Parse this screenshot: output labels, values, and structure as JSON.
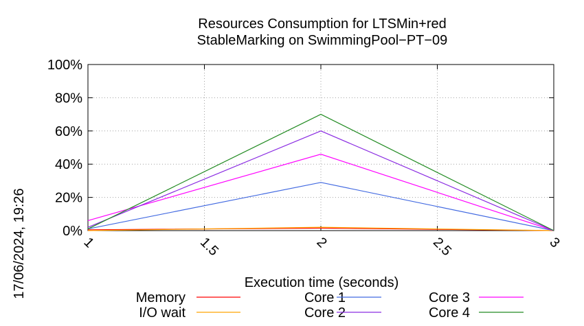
{
  "chart_data": {
    "type": "line",
    "title": [
      "Resources Consumption for LTSMin+red",
      "StableMarking on SwimmingPool−PT−09"
    ],
    "xlabel": "Execution time (seconds)",
    "ylabel": "",
    "xlim": [
      1,
      3
    ],
    "ylim": [
      0,
      100
    ],
    "xticks": [
      1,
      1.5,
      2,
      2.5,
      3
    ],
    "xtick_labels": [
      "1",
      "1.5",
      "2",
      "2.5",
      "3"
    ],
    "yticks": [
      0,
      20,
      40,
      60,
      80,
      100
    ],
    "ytick_labels": [
      "0%",
      "20%",
      "40%",
      "60%",
      "80%",
      "100%"
    ],
    "grid": true,
    "legend_position": "bottom",
    "x": [
      1,
      2,
      3
    ],
    "series": [
      {
        "name": "Memory",
        "color": "#ff0000",
        "values": [
          0.5,
          1.5,
          0
        ]
      },
      {
        "name": "I/O wait",
        "color": "#ffa500",
        "values": [
          0,
          2,
          0
        ]
      },
      {
        "name": "Core 1",
        "color": "#4169e1",
        "values": [
          1,
          29,
          0
        ]
      },
      {
        "name": "Core 2",
        "color": "#8a2be2",
        "values": [
          2,
          60,
          0
        ]
      },
      {
        "name": "Core 3",
        "color": "#ff00ff",
        "values": [
          6,
          46,
          0
        ]
      },
      {
        "name": "Core 4",
        "color": "#228b22",
        "values": [
          1,
          70,
          0
        ]
      }
    ]
  },
  "timestamp": "17/06/2024, 19:26"
}
